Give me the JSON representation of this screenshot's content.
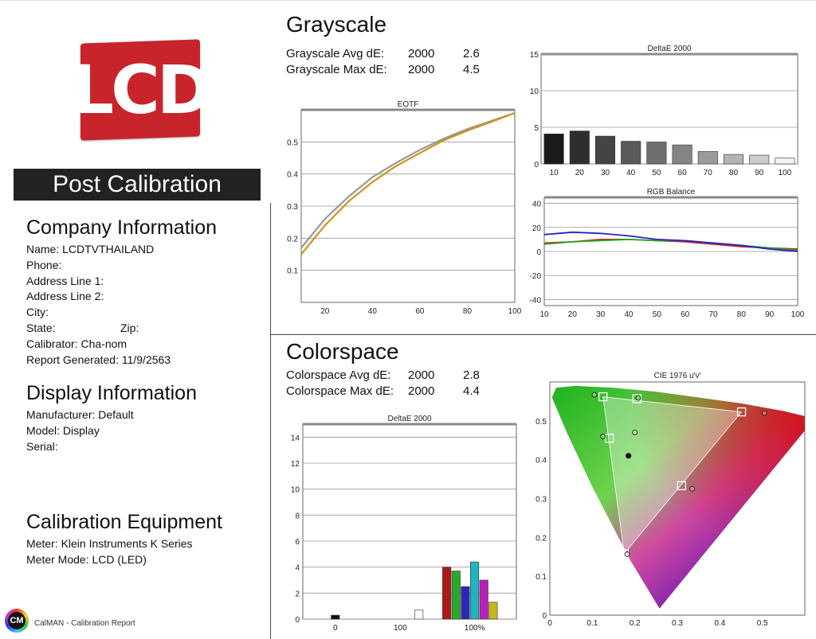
{
  "logo": {
    "text": "LCD",
    "color": "#c8242b"
  },
  "banner": "Post Calibration",
  "company": {
    "heading": "Company Information",
    "name": "Name: LCDTVTHAILAND",
    "phone": "Phone:",
    "address1": "Address Line 1:",
    "address2": "Address Line 2:",
    "city": "City:",
    "state": "State:",
    "zip": "Zip:",
    "calibrator": "Calibrator: Cha-nom",
    "report": "Report Generated: 11/9/2563"
  },
  "display": {
    "heading": "Display Information",
    "manufacturer": "Manufacturer: Default",
    "model": "Model: Display",
    "serial": "Serial:"
  },
  "equipment": {
    "heading": "Calibration Equipment",
    "meter": "Meter: Klein Instruments K Series",
    "mode": "Meter Mode: LCD (LED)"
  },
  "footer": {
    "icon": "CM",
    "text": "CalMAN - Calibration Report"
  },
  "grayscale": {
    "title": "Grayscale",
    "avg_label": "Grayscale Avg dE:",
    "avg_std": "2000",
    "avg_val": "2.6",
    "max_label": "Grayscale Max dE:",
    "max_std": "2000",
    "max_val": "4.5"
  },
  "colorspace": {
    "title": "Colorspace",
    "avg_label": "Colorspace Avg dE:",
    "avg_std": "2000",
    "avg_val": "2.8",
    "max_label": "Colorspace Max dE:",
    "max_std": "2000",
    "max_val": "4.4"
  },
  "chart_data": [
    {
      "id": "eotf",
      "type": "line",
      "title": "EOTF",
      "xlim": [
        10,
        100
      ],
      "ylim": [
        0,
        0.6
      ],
      "xticks": [
        20,
        40,
        60,
        80,
        100
      ],
      "yticks": [
        0.1,
        0.2,
        0.3,
        0.4,
        0.5
      ],
      "series": [
        {
          "color": "#999999",
          "x": [
            10,
            20,
            30,
            40,
            50,
            60,
            70,
            80,
            90,
            100
          ],
          "y": [
            0.17,
            0.26,
            0.33,
            0.39,
            0.435,
            0.475,
            0.51,
            0.54,
            0.565,
            0.59
          ]
        },
        {
          "color": "#c8961e",
          "x": [
            10,
            20,
            30,
            40,
            50,
            60,
            70,
            80,
            90,
            100
          ],
          "y": [
            0.15,
            0.24,
            0.315,
            0.375,
            0.425,
            0.465,
            0.505,
            0.535,
            0.562,
            0.59
          ]
        }
      ]
    },
    {
      "id": "gs_de",
      "type": "bar",
      "title": "DeltaE 2000",
      "categories": [
        "10",
        "20",
        "30",
        "40",
        "50",
        "60",
        "70",
        "80",
        "90",
        "100"
      ],
      "values": [
        4.1,
        4.5,
        3.8,
        3.1,
        3.0,
        2.6,
        1.7,
        1.3,
        1.2,
        0.8
      ],
      "colors": [
        "#1a1a1a",
        "#2e2e2e",
        "#444444",
        "#595959",
        "#6e6e6e",
        "#848484",
        "#9c9c9c",
        "#b4b4b4",
        "#cccccc",
        "#f2f2f2"
      ],
      "ylim": [
        0,
        15
      ],
      "yticks": [
        0,
        5,
        10,
        15
      ]
    },
    {
      "id": "rgb",
      "type": "line",
      "title": "RGB Balance",
      "xlim": [
        10,
        100
      ],
      "ylim": [
        -45,
        45
      ],
      "xticks": [
        10,
        20,
        30,
        40,
        50,
        60,
        70,
        80,
        90,
        100
      ],
      "yticks": [
        -40,
        -20,
        0,
        20,
        40
      ],
      "series": [
        {
          "color": "#cc2222",
          "x": [
            10,
            20,
            30,
            40,
            50,
            60,
            70,
            80,
            90,
            100
          ],
          "y": [
            7,
            8,
            10,
            10,
            9,
            8,
            6,
            4,
            3,
            2
          ]
        },
        {
          "color": "#22aa22",
          "x": [
            10,
            20,
            30,
            40,
            50,
            60,
            70,
            80,
            90,
            100
          ],
          "y": [
            6,
            8,
            9,
            10,
            9,
            9,
            7,
            5,
            3,
            1
          ]
        },
        {
          "color": "#2222cc",
          "x": [
            10,
            20,
            30,
            40,
            50,
            60,
            70,
            80,
            90,
            100
          ],
          "y": [
            14,
            16,
            15,
            13,
            10,
            9,
            7,
            5,
            2,
            0
          ]
        }
      ]
    },
    {
      "id": "cs_de",
      "type": "bar",
      "title": "DeltaE 2000",
      "ylim": [
        0,
        15
      ],
      "yticks": [
        0,
        2,
        4,
        6,
        8,
        10,
        12,
        14
      ],
      "xtick_labels": [
        {
          "label": "0",
          "slot": 3
        },
        {
          "label": "100",
          "slot": 10
        },
        {
          "label": "100%",
          "slot": 18
        }
      ],
      "bars": [
        {
          "slot": 3,
          "value": 0.3,
          "color": "#111111"
        },
        {
          "slot": 12,
          "value": 0.7,
          "color": "#ffffff"
        },
        {
          "slot": 15,
          "value": 4.0,
          "color": "#b01818"
        },
        {
          "slot": 16,
          "value": 3.7,
          "color": "#2aa82a"
        },
        {
          "slot": 17,
          "value": 2.5,
          "color": "#2828b8"
        },
        {
          "slot": 18,
          "value": 4.4,
          "color": "#20b4c0"
        },
        {
          "slot": 19,
          "value": 3.0,
          "color": "#b820b8"
        },
        {
          "slot": 20,
          "value": 1.3,
          "color": "#c8b41e"
        }
      ]
    },
    {
      "id": "cie",
      "type": "scatter",
      "title": "CIE 1976 u'v'",
      "xlim": [
        0,
        0.6
      ],
      "ylim": [
        0,
        0.6
      ],
      "xticks": [
        0,
        0.1,
        0.2,
        0.3,
        0.4,
        0.5
      ],
      "yticks": [
        0,
        0.1,
        0.2,
        0.3,
        0.4,
        0.5
      ],
      "gamut": [
        [
          0.451,
          0.523
        ],
        [
          0.125,
          0.562
        ],
        [
          0.175,
          0.158
        ]
      ],
      "targets": [
        [
          0.451,
          0.523
        ],
        [
          0.125,
          0.562
        ],
        [
          0.175,
          0.158
        ],
        [
          0.205,
          0.557
        ],
        [
          0.14,
          0.455
        ],
        [
          0.31,
          0.333
        ]
      ],
      "measured": [
        [
          0.505,
          0.52
        ],
        [
          0.105,
          0.567
        ],
        [
          0.182,
          0.157
        ],
        [
          0.208,
          0.559
        ],
        [
          0.125,
          0.46
        ],
        [
          0.335,
          0.325
        ],
        [
          0.2,
          0.47
        ]
      ],
      "white": [
        0.185,
        0.41
      ]
    }
  ]
}
